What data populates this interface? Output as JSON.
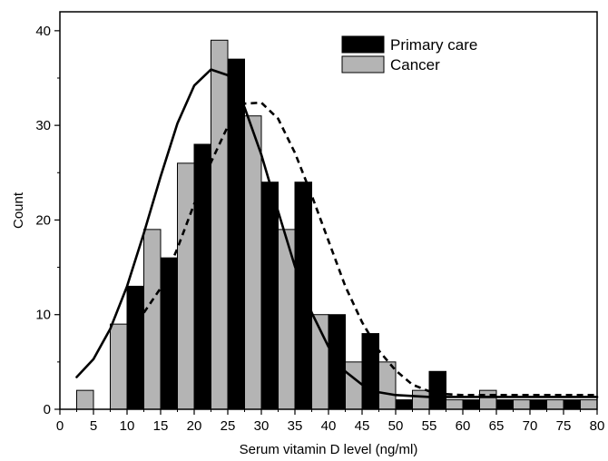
{
  "chart_data": {
    "type": "bar",
    "title": "",
    "xlabel": "Serum vitamin D level (ng/ml)",
    "ylabel": "Count",
    "xlim": [
      0,
      80
    ],
    "ylim": [
      0,
      42
    ],
    "xticks": [
      "0",
      "5",
      "10",
      "15",
      "20",
      "25",
      "30",
      "35",
      "40",
      "45",
      "50",
      "55",
      "60",
      "65",
      "70",
      "75",
      "80"
    ],
    "yticks": [
      "0",
      "10",
      "20",
      "30",
      "40"
    ],
    "grid": false,
    "legend_position": "top-right",
    "bin_width": 2.5,
    "series": [
      {
        "name": "Primary care",
        "color": "#000000",
        "bins": [
          {
            "x": 11.25,
            "y": 13
          },
          {
            "x": 16.25,
            "y": 16
          },
          {
            "x": 21.25,
            "y": 28
          },
          {
            "x": 26.25,
            "y": 37
          },
          {
            "x": 31.25,
            "y": 24
          },
          {
            "x": 36.25,
            "y": 24
          },
          {
            "x": 41.25,
            "y": 10
          },
          {
            "x": 46.25,
            "y": 8
          },
          {
            "x": 51.25,
            "y": 1
          },
          {
            "x": 56.25,
            "y": 4
          },
          {
            "x": 61.25,
            "y": 1
          },
          {
            "x": 66.25,
            "y": 1
          },
          {
            "x": 71.25,
            "y": 1
          },
          {
            "x": 76.25,
            "y": 1
          }
        ]
      },
      {
        "name": "Cancer",
        "color": "#b4b4b4",
        "bins": [
          {
            "x": 3.75,
            "y": 2
          },
          {
            "x": 8.75,
            "y": 9
          },
          {
            "x": 13.75,
            "y": 19
          },
          {
            "x": 18.75,
            "y": 26
          },
          {
            "x": 23.75,
            "y": 39
          },
          {
            "x": 28.75,
            "y": 31
          },
          {
            "x": 33.75,
            "y": 19
          },
          {
            "x": 38.75,
            "y": 10
          },
          {
            "x": 43.75,
            "y": 5
          },
          {
            "x": 48.75,
            "y": 5
          },
          {
            "x": 53.75,
            "y": 2
          },
          {
            "x": 58.75,
            "y": 1
          },
          {
            "x": 63.75,
            "y": 2
          },
          {
            "x": 68.75,
            "y": 1
          },
          {
            "x": 73.75,
            "y": 1
          },
          {
            "x": 78.75,
            "y": 1
          }
        ]
      }
    ],
    "fitted_curves": [
      {
        "style": "solid",
        "points": [
          [
            2.5,
            3.4
          ],
          [
            5,
            5.3
          ],
          [
            7.5,
            8.5
          ],
          [
            10,
            13.0
          ],
          [
            12.5,
            18.6
          ],
          [
            15,
            24.6
          ],
          [
            17.5,
            30.2
          ],
          [
            20,
            34.2
          ],
          [
            22.5,
            35.9
          ],
          [
            25,
            35.3
          ],
          [
            27.5,
            31.9
          ],
          [
            30,
            26.9
          ],
          [
            32.5,
            20.9
          ],
          [
            35,
            15.1
          ],
          [
            37.5,
            10.2
          ],
          [
            40,
            6.6
          ],
          [
            42.5,
            4.0
          ],
          [
            45,
            2.6
          ],
          [
            47.5,
            1.8
          ],
          [
            50,
            1.5
          ],
          [
            55,
            1.3
          ],
          [
            60,
            1.3
          ],
          [
            70,
            1.3
          ],
          [
            80,
            1.3
          ]
        ]
      },
      {
        "style": "dashed",
        "points": [
          [
            12.5,
            10.2
          ],
          [
            15,
            12.8
          ],
          [
            17.5,
            17.0
          ],
          [
            20,
            21.7
          ],
          [
            22.5,
            26.1
          ],
          [
            25,
            29.9
          ],
          [
            27.5,
            32.3
          ],
          [
            30,
            32.4
          ],
          [
            32.5,
            30.7
          ],
          [
            35,
            27.1
          ],
          [
            37.5,
            22.6
          ],
          [
            40,
            17.8
          ],
          [
            42.5,
            13.0
          ],
          [
            45,
            9.2
          ],
          [
            47.5,
            6.2
          ],
          [
            50,
            4.1
          ],
          [
            52.5,
            2.6
          ],
          [
            55,
            1.9
          ],
          [
            57.5,
            1.6
          ],
          [
            60,
            1.5
          ],
          [
            70,
            1.5
          ],
          [
            80,
            1.5
          ]
        ]
      }
    ]
  }
}
